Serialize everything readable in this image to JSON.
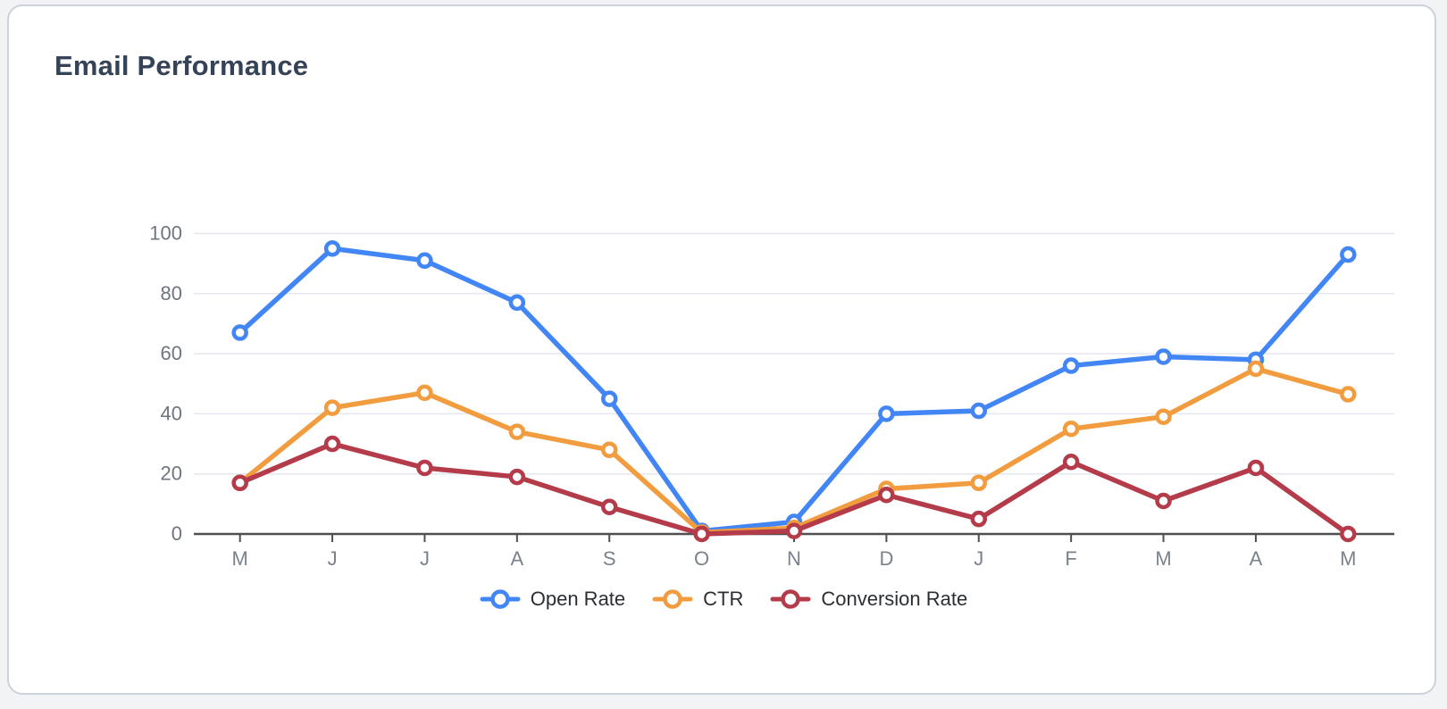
{
  "page": {
    "background": "#f2f3f4"
  },
  "card": {
    "title": "Email Performance",
    "title_color": "#354358",
    "background": "#ffffff",
    "border_color": "#ccd2da"
  },
  "chart_data": {
    "type": "line",
    "title": "Email Performance",
    "categories": [
      "M",
      "J",
      "J",
      "A",
      "S",
      "O",
      "N",
      "D",
      "J",
      "F",
      "M",
      "A",
      "M"
    ],
    "series": [
      {
        "name": "Open Rate",
        "color": "#4285f4",
        "values": [
          67,
          95,
          91,
          77,
          45,
          1,
          4,
          40,
          41,
          56,
          59,
          58,
          93
        ]
      },
      {
        "name": "CTR",
        "color": "#f19d3f",
        "values": [
          17,
          42,
          47,
          34,
          28,
          0.5,
          2,
          15,
          17,
          35,
          39,
          55,
          46.5
        ]
      },
      {
        "name": "Conversion Rate",
        "color": "#b43c4a",
        "values": [
          17,
          30,
          22,
          19,
          9,
          0,
          1,
          13,
          5,
          24,
          11,
          22,
          0
        ]
      }
    ],
    "yticks": [
      0,
      20,
      40,
      60,
      80,
      100
    ],
    "ylim": [
      0,
      100
    ],
    "xlabel": "",
    "ylabel": "",
    "grid": true,
    "legend_position": "bottom",
    "marker_style": "open-circle",
    "axis_color": "#4f4f4f",
    "gridline_color": "#e4e7ef",
    "tick_label_color": "#7b828c"
  }
}
